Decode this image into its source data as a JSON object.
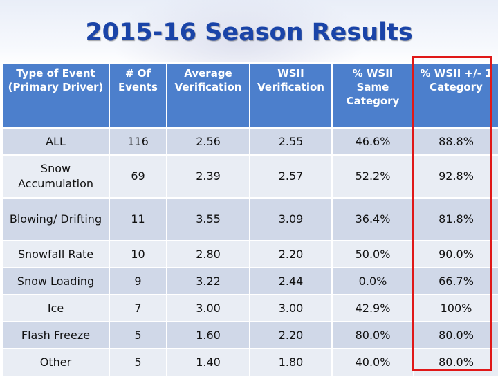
{
  "slide": {
    "title": "2015-16 Season Results"
  },
  "table": {
    "headers": [
      "Type of Event (Primary Driver)",
      "# Of Events",
      "Average Verification",
      "WSII Verification",
      "% WSII Same Category",
      "% WSII +/- 1 Category"
    ],
    "rows": [
      [
        "ALL",
        "116",
        "2.56",
        "2.55",
        "46.6%",
        "88.8%"
      ],
      [
        "Snow Accumulation",
        "69",
        "2.39",
        "2.57",
        "52.2%",
        "92.8%"
      ],
      [
        "Blowing/ Drifting",
        "11",
        "3.55",
        "3.09",
        "36.4%",
        "81.8%"
      ],
      [
        "Snowfall Rate",
        "10",
        "2.80",
        "2.20",
        "50.0%",
        "90.0%"
      ],
      [
        "Snow Loading",
        "9",
        "3.22",
        "2.44",
        "0.0%",
        "66.7%"
      ],
      [
        "Ice",
        "7",
        "3.00",
        "3.00",
        "42.9%",
        "100%"
      ],
      [
        "Flash Freeze",
        "5",
        "1.60",
        "2.20",
        "80.0%",
        "80.0%"
      ],
      [
        "Other",
        "5",
        "1.40",
        "1.80",
        "40.0%",
        "80.0%"
      ]
    ]
  },
  "colors": {
    "title": "#1a44a8",
    "header_bg": "#4c7fcc",
    "row_odd": "#d0d8e8",
    "row_even": "#e9edf4",
    "highlight_border": "#e01818"
  }
}
